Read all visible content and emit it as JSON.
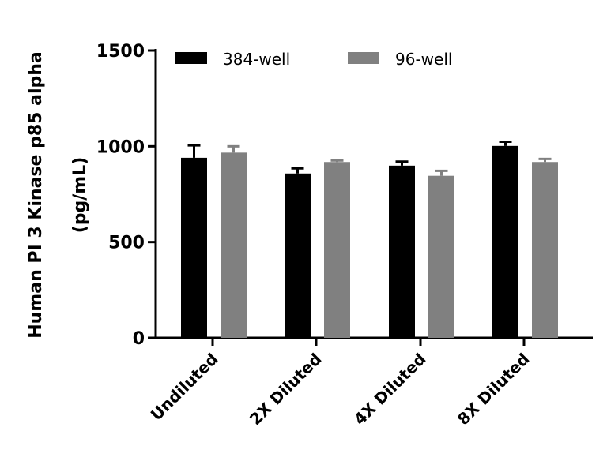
{
  "chart_data": {
    "type": "bar",
    "title": "",
    "xlabel": "",
    "ylabel": [
      "Human PI 3 Kinase p85 alpha",
      "(pg/mL)"
    ],
    "ylim": [
      0,
      1500
    ],
    "yticks": [
      "0",
      "500",
      "1000",
      "1500"
    ],
    "categories": [
      "Undiluted",
      "2X Diluted",
      "4X Diluted",
      "8X Diluted"
    ],
    "legend_position": "top",
    "series": [
      {
        "name": "384-well",
        "color": "#000000",
        "values": [
          940,
          858,
          899,
          1002
        ],
        "error": [
          65,
          27,
          21,
          22
        ]
      },
      {
        "name": "96-well",
        "color": "#808080",
        "values": [
          967,
          918,
          846,
          918
        ],
        "error": [
          33,
          8,
          26,
          16
        ]
      }
    ]
  }
}
